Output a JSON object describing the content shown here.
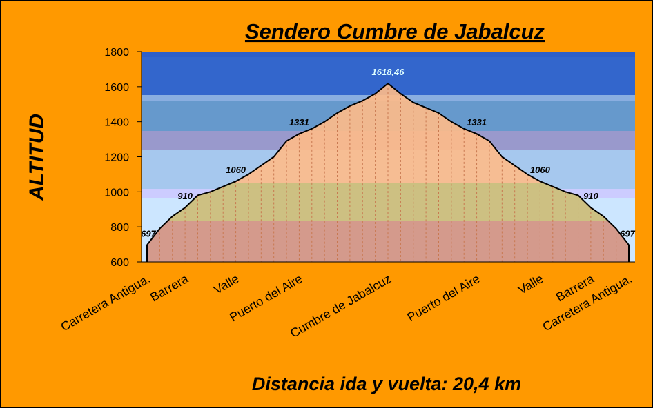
{
  "chart_data": {
    "type": "area",
    "title": "Sendero Cumbre de Jabalcuz",
    "x_label": "Distancia ida y vuelta: 20,4 km",
    "y_label": "ALTITUD",
    "categories": [
      "Carretera Antigua.",
      null,
      null,
      "Barrera",
      null,
      null,
      null,
      "Valle",
      null,
      null,
      null,
      null,
      "Puerto del Aire",
      null,
      null,
      null,
      null,
      null,
      null,
      "Cumbre de Jabalcuz",
      null,
      null,
      null,
      null,
      null,
      null,
      "Puerto del Aire",
      null,
      null,
      null,
      null,
      "Valle",
      null,
      null,
      null,
      "Barrera",
      null,
      null,
      "Carretera Antigua."
    ],
    "values": [
      697,
      790,
      860,
      910,
      980,
      1000,
      1030,
      1060,
      1100,
      1150,
      1200,
      1290,
      1331,
      1360,
      1400,
      1450,
      1490,
      1520,
      1560,
      1618.46,
      1560,
      1510,
      1480,
      1450,
      1400,
      1360,
      1331,
      1290,
      1200,
      1150,
      1100,
      1060,
      1030,
      1000,
      980,
      910,
      860,
      790,
      697
    ],
    "value_labels": [
      "697",
      null,
      null,
      "910",
      null,
      null,
      null,
      "1060",
      null,
      null,
      null,
      null,
      "1331",
      null,
      null,
      null,
      null,
      null,
      null,
      "1618,46",
      null,
      null,
      null,
      null,
      null,
      null,
      "1331",
      null,
      null,
      null,
      null,
      "1060",
      null,
      null,
      null,
      "910",
      null,
      null,
      "697"
    ],
    "color": "#000000",
    "ylim": [
      600,
      1800
    ],
    "yticks": [
      600,
      800,
      1000,
      1200,
      1400,
      1600,
      1800
    ]
  }
}
